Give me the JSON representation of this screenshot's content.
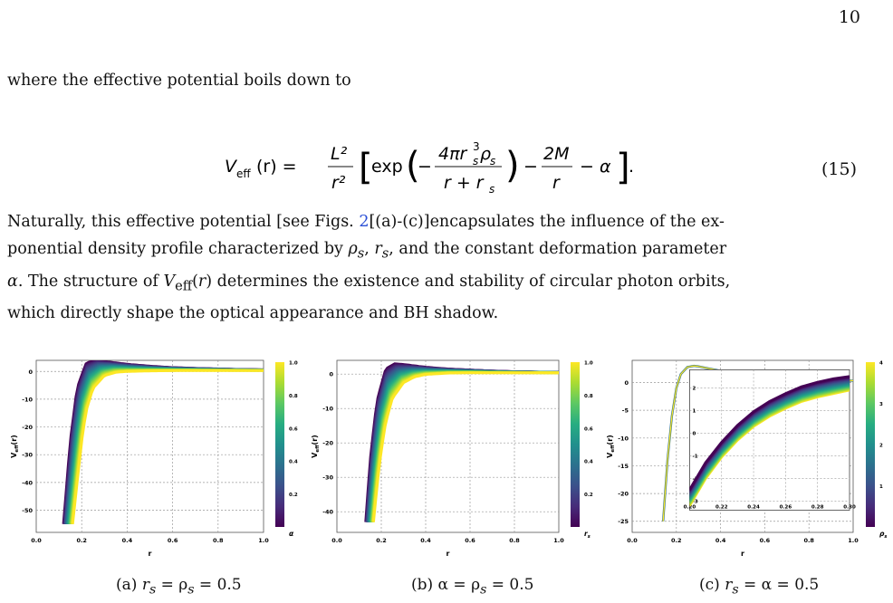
{
  "page_number": "10",
  "intro": "where the effective potential boils down to",
  "equation": {
    "lhs": "V",
    "lhs_sub": "eff",
    "lhs_arg": "(r) =",
    "l2": "L²",
    "r2": "r²",
    "exp": "exp",
    "num": "4πr",
    "num_sup": "3",
    "num_sub": "s",
    "num_rho": "ρ",
    "den": "r + r",
    "den_sub": "s",
    "two_m": "2M",
    "r": "r",
    "alpha": "− α",
    "number": "(15)"
  },
  "paragraph": {
    "l1a": "Naturally, this effective potential [see Figs. ",
    "l1ref": "2",
    "l1b": "[(a)-(c)]encapsulates the influence of the ex-",
    "l2a": "ponential density profile characterized by ",
    "l2b": ", and the constant deformation parameter",
    "l3a": ". The structure of ",
    "l3b": " determines the existence and stability of circular photon orbits,",
    "l4": "which directly shape the optical appearance and BH shadow."
  },
  "chart_data": [
    {
      "type": "area",
      "xlabel": "r",
      "ylabel": "V_eff(r)",
      "xlim": [
        0.0,
        1.0
      ],
      "ylim": [
        -58,
        4
      ],
      "xticks": [
        "0.0",
        "0.2",
        "0.4",
        "0.6",
        "0.8",
        "1.0"
      ],
      "yticks": [
        "0",
        "-10",
        "-20",
        "-30",
        "-40",
        "-50"
      ],
      "ytick_values": [
        0,
        -10,
        -20,
        -30,
        -40,
        -50
      ],
      "colorbar_label": "α",
      "colorbar_ticks": [
        "1.0",
        "0.8",
        "0.6",
        "0.4",
        "0.2"
      ],
      "colorbar_range": [
        0,
        1
      ],
      "grid": true,
      "curves": [
        {
          "param": 0.0,
          "x": [
            0.12,
            0.15,
            0.18,
            0.22,
            0.26,
            0.3,
            0.4,
            0.5,
            0.6,
            0.7,
            0.8,
            0.9,
            1.0
          ],
          "y": [
            -55,
            -25,
            -6,
            3,
            4,
            3.6,
            2.6,
            1.9,
            1.4,
            1.1,
            0.9,
            0.7,
            0.6
          ]
        },
        {
          "param": 1.0,
          "x": [
            0.16,
            0.18,
            0.2,
            0.22,
            0.25,
            0.3,
            0.35,
            0.4,
            0.5,
            0.6,
            0.7,
            0.8,
            0.9,
            1.0
          ],
          "y": [
            -55,
            -40,
            -25,
            -14,
            -6,
            -1.5,
            -0.3,
            0.0,
            0.2,
            0.3,
            0.35,
            0.35,
            0.35,
            0.35
          ]
        }
      ]
    },
    {
      "type": "area",
      "xlabel": "r",
      "ylabel": "V_eff(r)",
      "xlim": [
        0.0,
        1.0
      ],
      "ylim": [
        -46,
        4
      ],
      "xticks": [
        "0.0",
        "0.2",
        "0.4",
        "0.6",
        "0.8",
        "1.0"
      ],
      "yticks": [
        "0",
        "-10",
        "-20",
        "-30",
        "-40"
      ],
      "ytick_values": [
        0,
        -10,
        -20,
        -30,
        -40
      ],
      "colorbar_label": "r_s",
      "colorbar_ticks": [
        "1.0",
        "0.8",
        "0.6",
        "0.4",
        "0.2"
      ],
      "colorbar_range": [
        0,
        1
      ],
      "grid": true,
      "curves": [
        {
          "param": 0.0,
          "x": [
            0.13,
            0.15,
            0.18,
            0.22,
            0.26,
            0.3,
            0.4,
            0.5,
            0.6,
            0.7,
            0.8,
            0.9,
            1.0
          ],
          "y": [
            -43,
            -25,
            -8,
            1.5,
            3,
            2.8,
            2,
            1.5,
            1.2,
            0.9,
            0.7,
            0.6,
            0.5
          ]
        },
        {
          "param": 1.0,
          "x": [
            0.165,
            0.18,
            0.2,
            0.22,
            0.25,
            0.3,
            0.35,
            0.4,
            0.5,
            0.6,
            0.7,
            0.8,
            0.9,
            1.0
          ],
          "y": [
            -43,
            -33,
            -22,
            -14,
            -7,
            -2.5,
            -0.8,
            -0.1,
            0.3,
            0.4,
            0.4,
            0.4,
            0.4,
            0.4
          ]
        }
      ]
    },
    {
      "type": "line",
      "xlabel": "r",
      "ylabel": "V_eff(r)",
      "xlim": [
        0.0,
        1.0
      ],
      "ylim": [
        -27,
        4
      ],
      "xticks": [
        "0.0",
        "0.2",
        "0.4",
        "0.6",
        "0.8",
        "1.0"
      ],
      "yticks": [
        "0",
        "-5",
        "-10",
        "-15",
        "-20",
        "-25"
      ],
      "ytick_values": [
        0,
        -5,
        -10,
        -15,
        -20,
        -25
      ],
      "colorbar_label": "ρ_s",
      "colorbar_ticks": [
        "4",
        "3",
        "2",
        "1"
      ],
      "colorbar_range": [
        0,
        4
      ],
      "grid": true,
      "curve": {
        "x": [
          0.14,
          0.16,
          0.18,
          0.2,
          0.22,
          0.25,
          0.28,
          0.3,
          0.35,
          0.4,
          0.5,
          0.6,
          0.7,
          0.8,
          0.9,
          1.0
        ],
        "y": [
          -25,
          -14,
          -6,
          -1,
          1.5,
          2.8,
          3,
          2.9,
          2.5,
          2.1,
          1.5,
          1.1,
          0.8,
          0.6,
          0.45,
          0.35
        ]
      },
      "inset": {
        "xlim": [
          0.2,
          0.3
        ],
        "ylim": [
          -3.4,
          2.8
        ],
        "xticks": [
          "0.20",
          "0.22",
          "0.24",
          "0.26",
          "0.28",
          "0.30"
        ],
        "yticks": [
          "2",
          "1",
          "0",
          "-1",
          "-2",
          "-3"
        ],
        "ytick_values": [
          2,
          1,
          0,
          -1,
          -2,
          -3
        ],
        "top_curve": {
          "x": [
            0.2,
            0.21,
            0.22,
            0.23,
            0.24,
            0.25,
            0.26,
            0.27,
            0.28,
            0.29,
            0.3
          ],
          "y": [
            -2.5,
            -1.3,
            -0.4,
            0.35,
            0.95,
            1.4,
            1.75,
            2.05,
            2.25,
            2.4,
            2.5
          ]
        },
        "bottom_curve": {
          "x": [
            0.2,
            0.21,
            0.22,
            0.23,
            0.24,
            0.25,
            0.26,
            0.27,
            0.28,
            0.29,
            0.3
          ],
          "y": [
            -3.2,
            -2.0,
            -1.05,
            -0.3,
            0.3,
            0.75,
            1.1,
            1.4,
            1.6,
            1.75,
            1.9
          ]
        }
      }
    }
  ],
  "captions": {
    "a": "(a) ",
    "a_eq": " = ρ",
    "a_val": " = 0.5",
    "b": "(b) α = ρ",
    "b_val": " = 0.5",
    "c": "(c) ",
    "c_eq": " = α = 0.5"
  }
}
